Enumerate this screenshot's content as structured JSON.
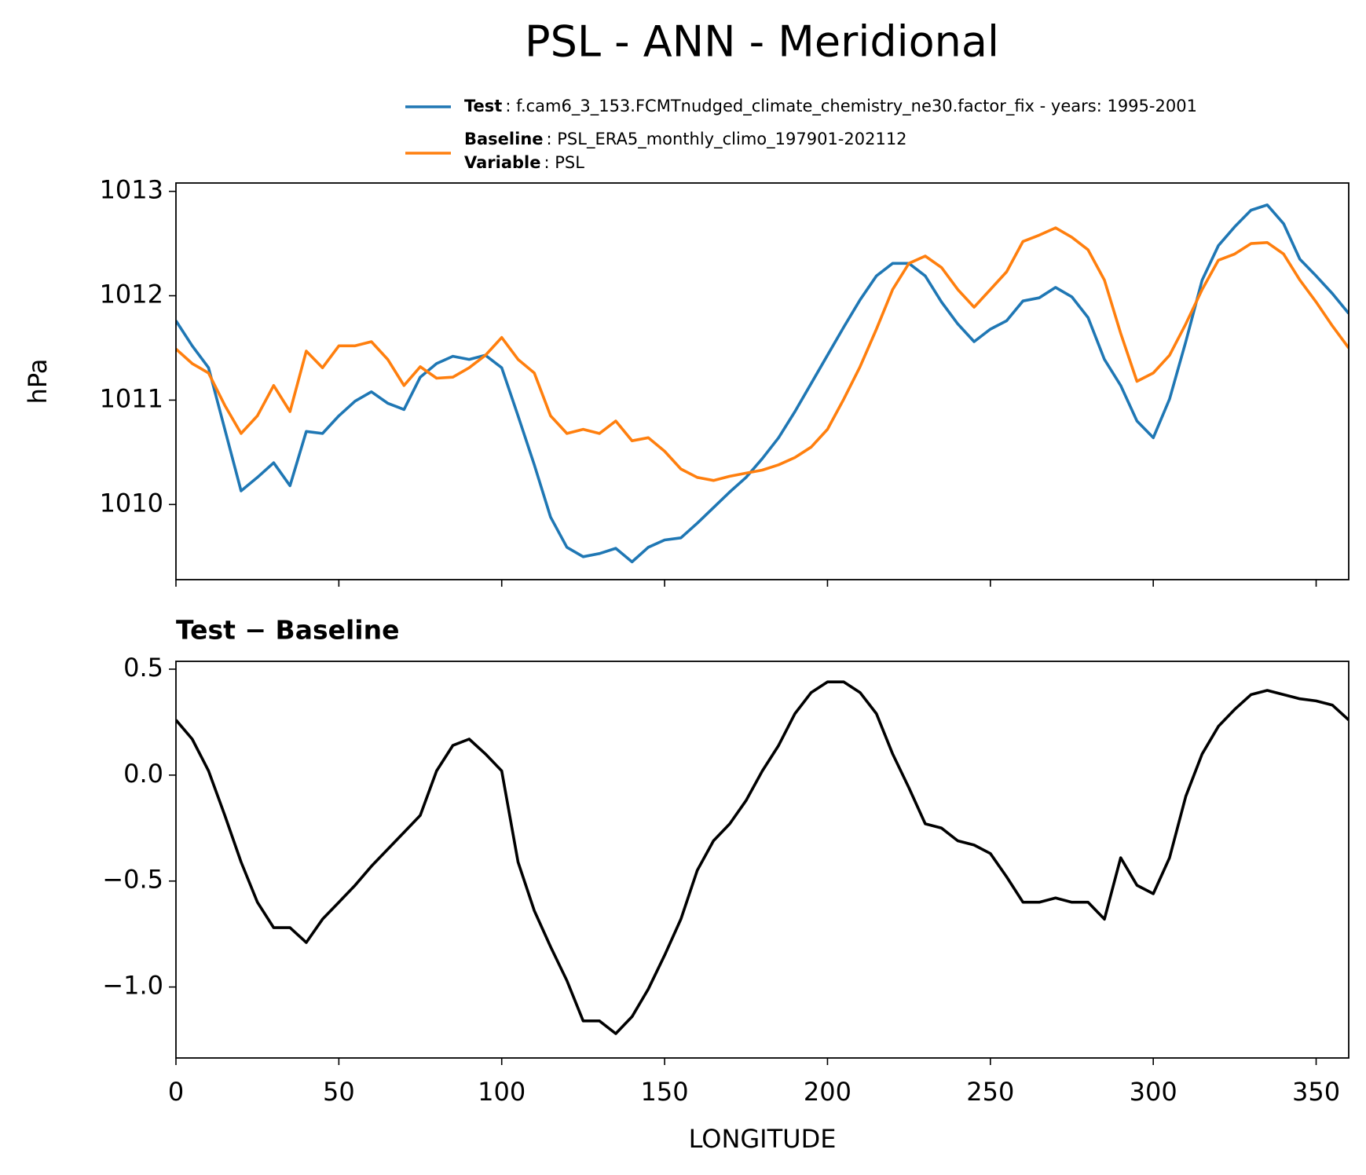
{
  "title": "PSL - ANN - Meridional",
  "chart_data": [
    {
      "type": "line",
      "ylabel": "hPa",
      "x": [
        0,
        5,
        10,
        15,
        20,
        25,
        30,
        35,
        40,
        45,
        50,
        55,
        60,
        65,
        70,
        75,
        80,
        85,
        90,
        95,
        100,
        105,
        110,
        115,
        120,
        125,
        130,
        135,
        140,
        145,
        150,
        155,
        160,
        165,
        170,
        175,
        180,
        185,
        190,
        195,
        200,
        205,
        210,
        215,
        220,
        225,
        230,
        235,
        240,
        245,
        250,
        255,
        260,
        265,
        270,
        275,
        280,
        285,
        290,
        295,
        300,
        305,
        310,
        315,
        320,
        325,
        330,
        335,
        340,
        345,
        350,
        355,
        360
      ],
      "xlim": [
        0,
        360
      ],
      "xticks": [
        0,
        50,
        100,
        150,
        200,
        250,
        300,
        350
      ],
      "ylim": [
        1009.28,
        1013.08
      ],
      "yticks": [
        1010,
        1011,
        1012,
        1013
      ],
      "series": [
        {
          "name": "Test",
          "description": ": f.cam6_3_153.FCMTnudged_climate_chemistry_ne30.factor_fix - years: 1995-2001",
          "color": "#1f77b4",
          "values": [
            1011.76,
            1011.52,
            1011.31,
            1010.72,
            1010.13,
            1010.26,
            1010.4,
            1010.18,
            1010.7,
            1010.68,
            1010.85,
            1010.99,
            1011.08,
            1010.97,
            1010.91,
            1011.22,
            1011.35,
            1011.42,
            1011.39,
            1011.43,
            1011.31,
            1010.85,
            1010.38,
            1009.88,
            1009.59,
            1009.5,
            1009.53,
            1009.58,
            1009.45,
            1009.59,
            1009.66,
            1009.68,
            1009.82,
            1009.97,
            1010.12,
            1010.26,
            1010.44,
            1010.64,
            1010.89,
            1011.16,
            1011.43,
            1011.7,
            1011.96,
            1012.19,
            1012.31,
            1012.31,
            1012.19,
            1011.94,
            1011.73,
            1011.56,
            1011.68,
            1011.76,
            1011.95,
            1011.98,
            1012.08,
            1011.99,
            1011.79,
            1011.39,
            1011.14,
            1010.8,
            1010.64,
            1011.01,
            1011.56,
            1012.15,
            1012.48,
            1012.66,
            1012.82,
            1012.87,
            1012.69,
            1012.35,
            1012.19,
            1012.02,
            1011.83
          ]
        },
        {
          "name": "Baseline",
          "description": ": PSL_ERA5_monthly_climo_197901-202112",
          "color": "#ff7f0e",
          "values": [
            1011.49,
            1011.35,
            1011.26,
            1010.95,
            1010.68,
            1010.85,
            1011.14,
            1010.89,
            1011.47,
            1011.31,
            1011.52,
            1011.52,
            1011.56,
            1011.39,
            1011.14,
            1011.32,
            1011.21,
            1011.22,
            1011.31,
            1011.43,
            1011.6,
            1011.39,
            1011.26,
            1010.85,
            1010.68,
            1010.72,
            1010.68,
            1010.8,
            1010.61,
            1010.64,
            1010.51,
            1010.34,
            1010.26,
            1010.23,
            1010.27,
            1010.3,
            1010.33,
            1010.38,
            1010.45,
            1010.55,
            1010.72,
            1011.01,
            1011.32,
            1011.68,
            1012.06,
            1012.31,
            1012.38,
            1012.27,
            1012.06,
            1011.89,
            1012.06,
            1012.23,
            1012.52,
            1012.58,
            1012.65,
            1012.56,
            1012.44,
            1012.15,
            1011.64,
            1011.18,
            1011.26,
            1011.43,
            1011.73,
            1012.06,
            1012.34,
            1012.4,
            1012.5,
            1012.51,
            1012.4,
            1012.15,
            1011.94,
            1011.71,
            1011.5
          ]
        }
      ],
      "legend_extra": {
        "name": "Variable",
        "description": ": PSL"
      }
    },
    {
      "type": "line",
      "title": "Test − Baseline",
      "xlabel": "LONGITUDE",
      "x": [
        0,
        5,
        10,
        15,
        20,
        25,
        30,
        35,
        40,
        45,
        50,
        55,
        60,
        65,
        70,
        75,
        80,
        85,
        90,
        95,
        100,
        105,
        110,
        115,
        120,
        125,
        130,
        135,
        140,
        145,
        150,
        155,
        160,
        165,
        170,
        175,
        180,
        185,
        190,
        195,
        200,
        205,
        210,
        215,
        220,
        225,
        230,
        235,
        240,
        245,
        250,
        255,
        260,
        265,
        270,
        275,
        280,
        285,
        290,
        295,
        300,
        305,
        310,
        315,
        320,
        325,
        330,
        335,
        340,
        345,
        350,
        355,
        360
      ],
      "xlim": [
        0,
        360
      ],
      "xticks": [
        0,
        50,
        100,
        150,
        200,
        250,
        300,
        350
      ],
      "ylim": [
        -1.335,
        0.537
      ],
      "yticks": [
        {
          "value": -1,
          "label": "−1.0"
        },
        {
          "value": -0.5,
          "label": "−0.5"
        },
        {
          "value": 0,
          "label": "0.0"
        },
        0.5
      ],
      "series": [
        {
          "color": "#000000",
          "values": [
            0.26,
            0.17,
            0.02,
            -0.19,
            -0.41,
            -0.6,
            -0.72,
            -0.72,
            -0.79,
            -0.68,
            -0.6,
            -0.52,
            -0.43,
            -0.35,
            -0.27,
            -0.19,
            0.02,
            0.14,
            0.17,
            0.1,
            0.02,
            -0.41,
            -0.64,
            -0.81,
            -0.97,
            -1.16,
            -1.16,
            -1.22,
            -1.14,
            -1.01,
            -0.85,
            -0.68,
            -0.45,
            -0.31,
            -0.23,
            -0.12,
            0.02,
            0.14,
            0.29,
            0.39,
            0.44,
            0.44,
            0.39,
            0.29,
            0.1,
            -0.06,
            -0.23,
            -0.25,
            -0.31,
            -0.33,
            -0.37,
            -0.48,
            -0.6,
            -0.6,
            -0.58,
            -0.6,
            -0.6,
            -0.68,
            -0.39,
            -0.52,
            -0.56,
            -0.39,
            -0.1,
            0.1,
            0.23,
            0.31,
            0.38,
            0.4,
            0.38,
            0.36,
            0.35,
            0.33,
            0.26
          ]
        }
      ]
    }
  ]
}
